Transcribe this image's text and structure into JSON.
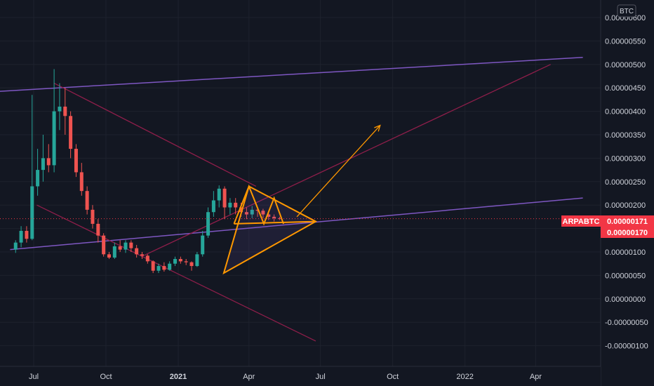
{
  "chart_data": {
    "type": "candlestick",
    "symbol": "ARPABTC",
    "unit": "BTC",
    "y_ticks": [
      "0.00000600",
      "0.00000550",
      "0.00000500",
      "0.00000450",
      "0.00000400",
      "0.00000350",
      "0.00000300",
      "0.00000250",
      "0.00000200",
      "0.00000150",
      "0.00000100",
      "0.00000050",
      "0.00000000",
      "-0.00000050",
      "-0.00000100"
    ],
    "x_ticks": [
      "Jul",
      "Oct",
      "2021",
      "Apr",
      "Jul",
      "Oct",
      "2022",
      "Apr"
    ],
    "ylim": [
      -1.2e-06,
      6.2e-06
    ],
    "last_price_label": "0.00000171",
    "ref_price_label": "0.00000170",
    "last_price": 1.71e-06,
    "ref_price": 1.7e-06,
    "grid": true,
    "series": [
      {
        "x": [
          "2020-06-08",
          "2020-06-15",
          "2020-06-22",
          "2020-06-29",
          "2020-07-06",
          "2020-07-13",
          "2020-07-20",
          "2020-07-27",
          "2020-08-03",
          "2020-08-10",
          "2020-08-17",
          "2020-08-24",
          "2020-08-31",
          "2020-09-07",
          "2020-09-14",
          "2020-09-21",
          "2020-09-28",
          "2020-10-05",
          "2020-10-12",
          "2020-10-19",
          "2020-10-26",
          "2020-11-02",
          "2020-11-09",
          "2020-11-16",
          "2020-11-23",
          "2020-11-30",
          "2020-12-07",
          "2020-12-14",
          "2020-12-21",
          "2020-12-28",
          "2021-01-04",
          "2021-01-11",
          "2021-01-18",
          "2021-01-25",
          "2021-02-01",
          "2021-02-08",
          "2021-02-15",
          "2021-02-22",
          "2021-03-01",
          "2021-03-08",
          "2021-03-15",
          "2021-03-22",
          "2021-03-29",
          "2021-04-05",
          "2021-04-12",
          "2021-04-19",
          "2021-04-26",
          "2021-05-03",
          "2021-05-10"
        ],
        "open": [
          1.05,
          1.2,
          1.45,
          1.28,
          2.4,
          2.75,
          3.0,
          2.85,
          4.0,
          4.1,
          3.9,
          3.2,
          2.7,
          2.3,
          1.9,
          1.6,
          1.35,
          0.95,
          0.88,
          1.12,
          1.05,
          1.2,
          1.08,
          0.95,
          0.92,
          0.8,
          0.6,
          0.7,
          0.62,
          0.75,
          0.85,
          0.8,
          0.78,
          0.7,
          0.95,
          1.35,
          1.85,
          2.1,
          2.35,
          1.95,
          2.05,
          1.95,
          1.85,
          1.8,
          1.9,
          1.88,
          1.8,
          1.75,
          1.72
        ],
        "close": [
          1.2,
          1.45,
          1.28,
          2.4,
          2.75,
          3.0,
          2.85,
          4.0,
          4.1,
          3.9,
          3.2,
          2.7,
          2.3,
          1.9,
          1.6,
          1.35,
          0.95,
          0.88,
          1.12,
          1.05,
          1.2,
          1.08,
          0.95,
          0.92,
          0.8,
          0.6,
          0.7,
          0.62,
          0.75,
          0.85,
          0.8,
          0.78,
          0.7,
          0.95,
          1.35,
          1.85,
          2.1,
          2.35,
          1.95,
          2.05,
          1.95,
          1.85,
          1.8,
          1.9,
          1.88,
          1.8,
          1.75,
          1.72,
          1.71
        ],
        "high": [
          1.25,
          1.55,
          1.55,
          4.35,
          3.2,
          3.5,
          3.3,
          4.9,
          4.6,
          4.5,
          4.0,
          3.3,
          2.9,
          2.4,
          2.0,
          1.7,
          1.4,
          1.0,
          1.2,
          1.25,
          1.25,
          1.25,
          1.15,
          1.0,
          0.95,
          0.82,
          0.75,
          0.78,
          0.8,
          0.9,
          0.9,
          0.85,
          0.8,
          1.0,
          1.45,
          1.95,
          2.3,
          2.42,
          2.4,
          2.15,
          2.15,
          2.05,
          1.95,
          1.98,
          1.95,
          1.92,
          1.85,
          1.8,
          1.75
        ],
        "low": [
          0.98,
          1.1,
          1.2,
          1.25,
          2.2,
          2.5,
          2.7,
          2.7,
          3.6,
          3.5,
          3.0,
          2.6,
          2.2,
          1.8,
          1.5,
          1.2,
          0.9,
          0.85,
          0.85,
          1.0,
          0.98,
          1.0,
          0.88,
          0.85,
          0.75,
          0.55,
          0.55,
          0.58,
          0.6,
          0.7,
          0.75,
          0.72,
          0.6,
          0.68,
          0.9,
          1.3,
          1.75,
          1.95,
          1.7,
          1.8,
          1.8,
          1.75,
          1.7,
          1.72,
          1.75,
          1.72,
          1.68,
          1.65,
          1.68
        ]
      }
    ],
    "drawings": {
      "upper_channel": [
        [
          "2020-03-01",
          4.35
        ],
        [
          "2022-05-31",
          5.15
        ]
      ],
      "lower_channel": [
        [
          "2020-06-01",
          1.05
        ],
        [
          "2022-05-31",
          2.15
        ]
      ],
      "desc_line_upper": [
        [
          "2020-07-27",
          4.6
        ],
        [
          "2021-04-10",
          2.4
        ]
      ],
      "desc_line_lower": [
        [
          "2020-07-05",
          2.0
        ],
        [
          "2021-06-25",
          -0.9
        ]
      ],
      "rising_line": [
        [
          "2020-11-15",
          0.9
        ],
        [
          "2022-04-20",
          5.0
        ]
      ],
      "triangle": [
        [
          "2021-02-28",
          0.55
        ],
        [
          "2021-04-01",
          2.4
        ],
        [
          "2021-06-25",
          1.65
        ]
      ],
      "pattern_peaks": [
        [
          "2021-03-13",
          1.6
        ],
        [
          "2021-04-01",
          2.4
        ],
        [
          "2021-04-20",
          1.6
        ],
        [
          "2021-05-03",
          2.15
        ],
        [
          "2021-05-15",
          1.6
        ]
      ],
      "arrow": [
        [
          "2021-06-01",
          1.75
        ],
        [
          "2021-09-15",
          3.7
        ]
      ]
    }
  }
}
